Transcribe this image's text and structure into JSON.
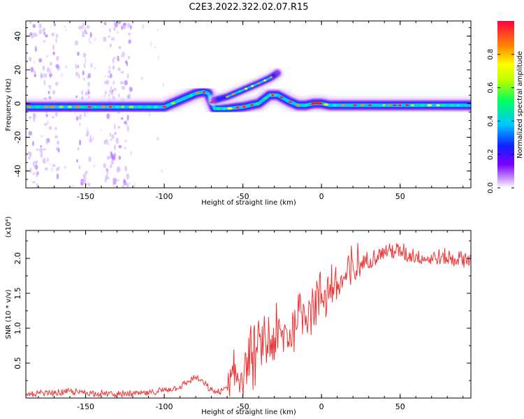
{
  "figure": {
    "title": "C2E3.2022.322.02.07.R15"
  },
  "chart_data": [
    {
      "type": "heatmap",
      "title": "C2E3.2022.322.02.07.R15",
      "xlabel": "Height of straight line (km)",
      "ylabel": "Frequency (Hz)",
      "xlim": [
        -188,
        95
      ],
      "ylim": [
        -50,
        49
      ],
      "xticks": [
        -150,
        -100,
        -50,
        0,
        50
      ],
      "yticks": [
        -40,
        -20,
        0,
        20,
        40
      ],
      "colorbar": {
        "label": "Normalized spectral amplitude",
        "range": [
          0,
          1
        ],
        "ticks": [
          0.0,
          0.2,
          0.4,
          0.6,
          0.8
        ]
      },
      "trace": {
        "x": [
          -188,
          -160,
          -140,
          -120,
          -100,
          -90,
          -80,
          -75,
          -72,
          -68,
          -60,
          -50,
          -40,
          -33,
          -28,
          -24,
          -20,
          -15,
          -10,
          -5,
          0,
          5,
          10,
          30,
          50,
          70,
          95
        ],
        "y": [
          -2,
          -2,
          -2,
          -2,
          -2,
          2,
          6,
          7,
          6,
          -3,
          -3,
          -2,
          0,
          5,
          5,
          3,
          1,
          -1,
          -1,
          0,
          0,
          -1,
          -1,
          -1,
          -1,
          -1,
          -1
        ]
      },
      "upper_branch": {
        "x": [
          -68,
          -60,
          -50,
          -40,
          -33,
          -28
        ],
        "y": [
          2,
          4,
          8,
          12,
          15,
          18
        ]
      }
    },
    {
      "type": "line",
      "xlabel": "Height of straight line (km)",
      "ylabel": "SNR (10 * v/v)",
      "multiplier": "(x10⁴)",
      "xlim": [
        -188,
        95
      ],
      "ylim": [
        0,
        24000
      ],
      "xticks": [
        -150,
        -100,
        -50,
        0,
        50
      ],
      "yticks": [
        5000,
        10000,
        15000,
        20000
      ],
      "ytick_labels": [
        "0.5",
        "1.0",
        "1.5",
        "2.0"
      ],
      "color": "#ee3333",
      "x": [
        -188,
        -170,
        -160,
        -150,
        -130,
        -110,
        -100,
        -90,
        -80,
        -75,
        -70,
        -65,
        -60,
        -55,
        -50,
        -45,
        -40,
        -35,
        -30,
        -25,
        -20,
        -15,
        -10,
        -5,
        0,
        5,
        10,
        15,
        20,
        25,
        30,
        35,
        40,
        45,
        50,
        55,
        60,
        65,
        70,
        75,
        80,
        85,
        90,
        95
      ],
      "y": [
        500,
        700,
        900,
        800,
        500,
        700,
        1200,
        1600,
        3000,
        2200,
        1000,
        800,
        1500,
        2500,
        4000,
        5500,
        7000,
        7500,
        8500,
        9000,
        9000,
        12000,
        13000,
        14000,
        15000,
        15500,
        16000,
        17000,
        18000,
        19000,
        20000,
        20500,
        21000,
        21000,
        21000,
        20500,
        20500,
        20000,
        20000,
        20000,
        20000,
        20000,
        20000,
        20000
      ]
    }
  ]
}
